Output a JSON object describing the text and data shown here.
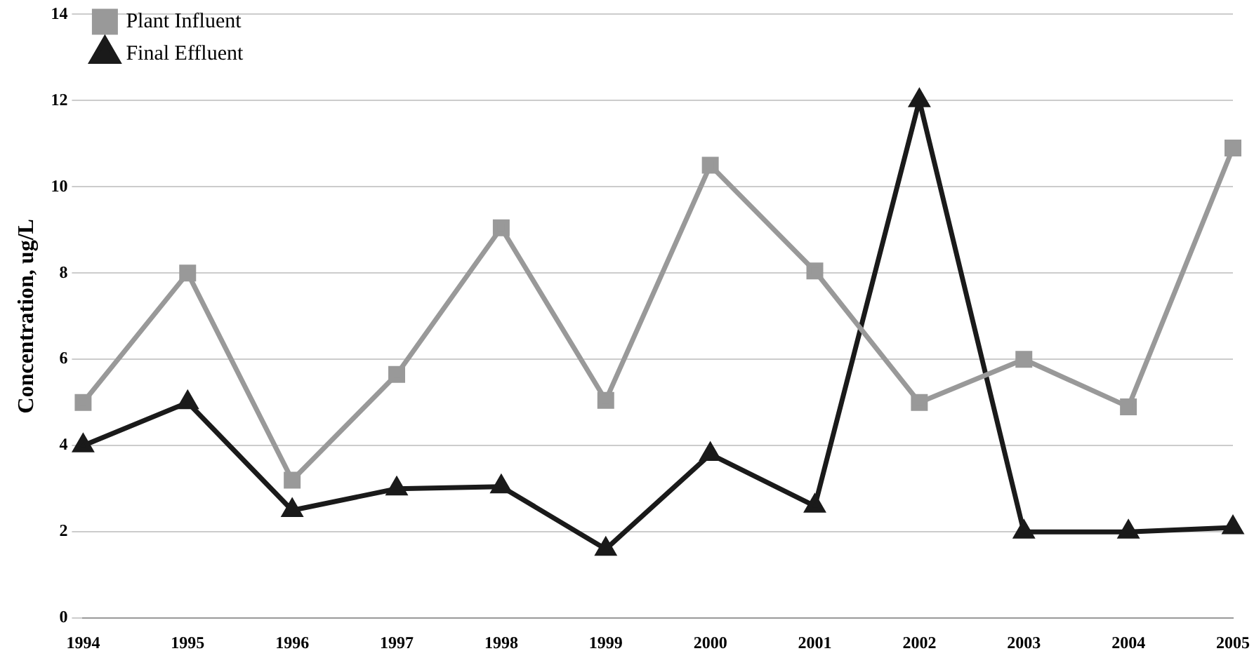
{
  "chart_data": {
    "type": "line",
    "ylabel": "Concentration, ug/L",
    "categories": [
      "1994",
      "1995",
      "1996",
      "1997",
      "1998",
      "1999",
      "2000",
      "2001",
      "2002",
      "2003",
      "2004",
      "2005"
    ],
    "series": [
      {
        "name": "Plant Influent",
        "color": "#999999",
        "marker": "square",
        "values": [
          5.0,
          8.0,
          3.2,
          5.65,
          9.05,
          5.05,
          10.5,
          8.05,
          5.0,
          6.0,
          4.9,
          10.9
        ]
      },
      {
        "name": "Final Effluent",
        "color": "#1a1a1a",
        "marker": "triangle",
        "values": [
          4.0,
          5.0,
          2.5,
          3.0,
          3.05,
          1.6,
          3.8,
          2.6,
          12.0,
          2.0,
          2.0,
          2.1
        ]
      }
    ],
    "ylim": [
      0,
      14
    ],
    "yticks": [
      0,
      2,
      4,
      6,
      8,
      10,
      12,
      14
    ],
    "grid": "y",
    "legend": "top left"
  }
}
